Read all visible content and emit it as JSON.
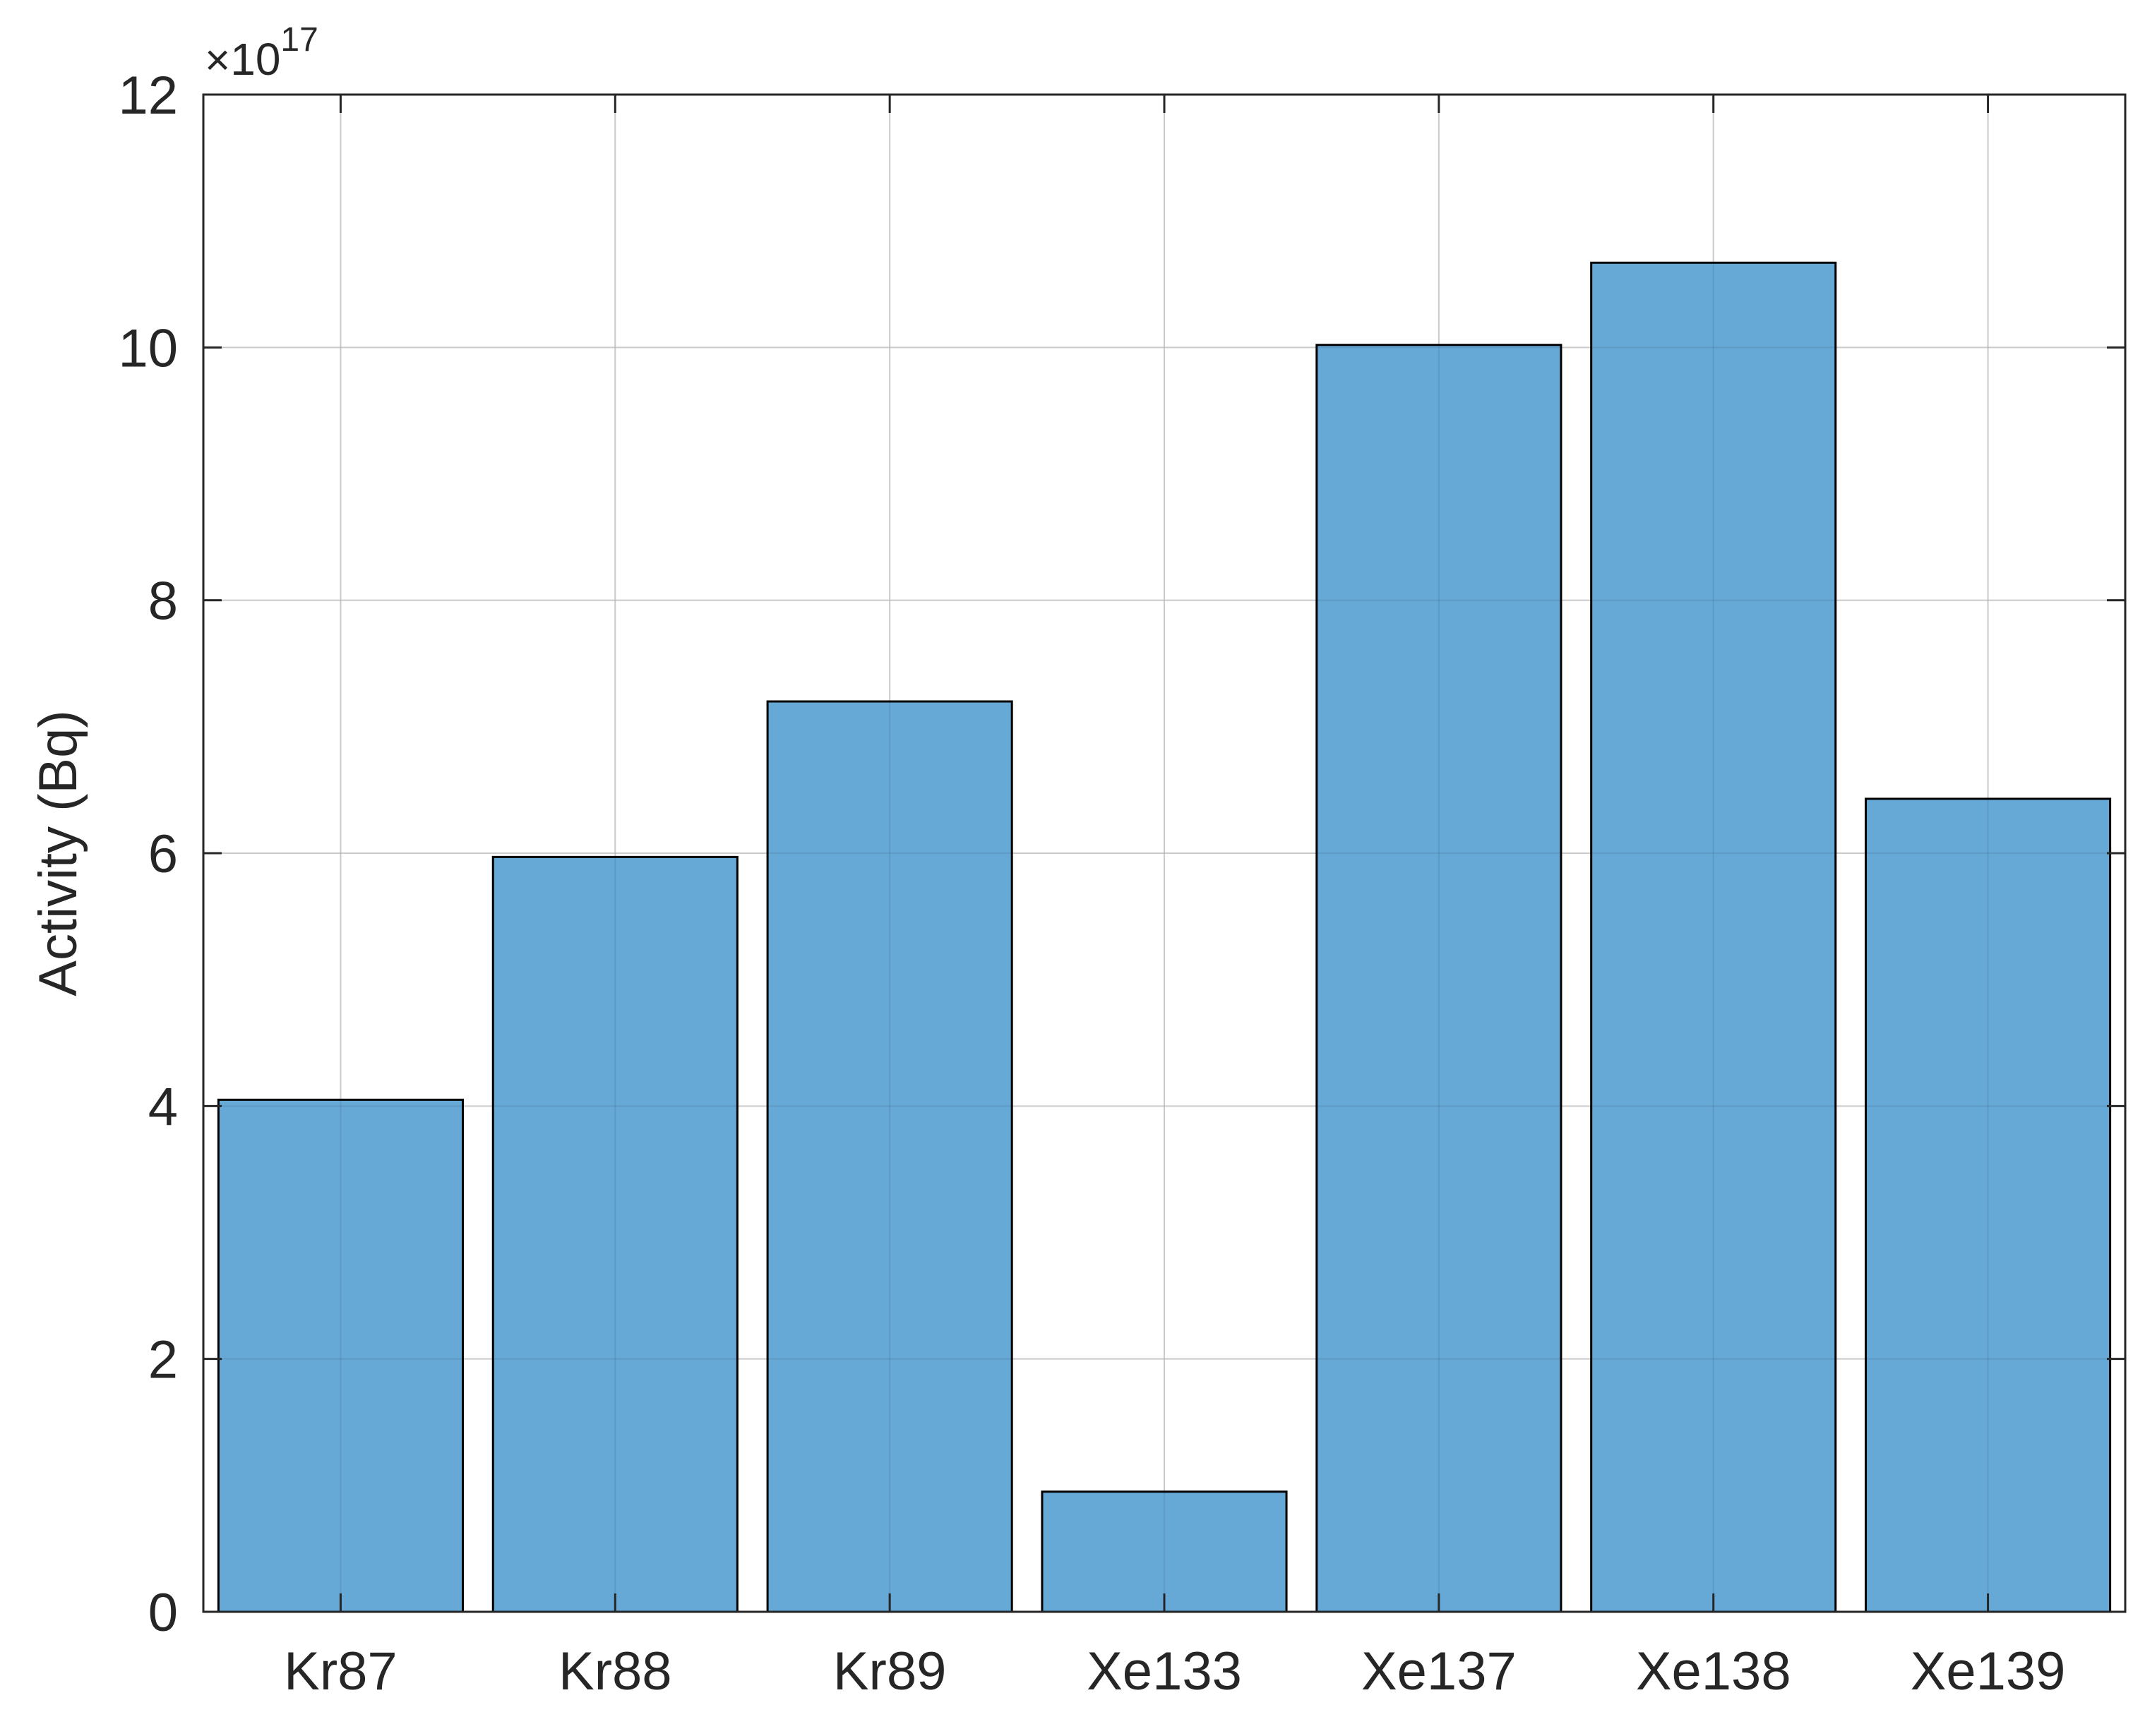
{
  "chart_data": {
    "type": "bar",
    "categories": [
      "Kr87",
      "Kr88",
      "Kr89",
      "Xe133",
      "Xe137",
      "Xe138",
      "Xe139"
    ],
    "values": [
      4.05,
      5.97,
      7.2,
      0.95,
      10.02,
      10.67,
      6.43
    ],
    "title": "",
    "xlabel": "",
    "ylabel": "Activity (Bq)",
    "ylim": [
      0,
      12
    ],
    "yticks": [
      0,
      2,
      4,
      6,
      8,
      10,
      12
    ],
    "y_multiplier_base": "10",
    "y_multiplier_exponent": "17",
    "y_multiplier_sign": "×",
    "grid": true,
    "bar_color": "#66a8d6",
    "edge_color": "#000000",
    "grid_color": "#dcdcdc",
    "axis_color": "#262626"
  }
}
